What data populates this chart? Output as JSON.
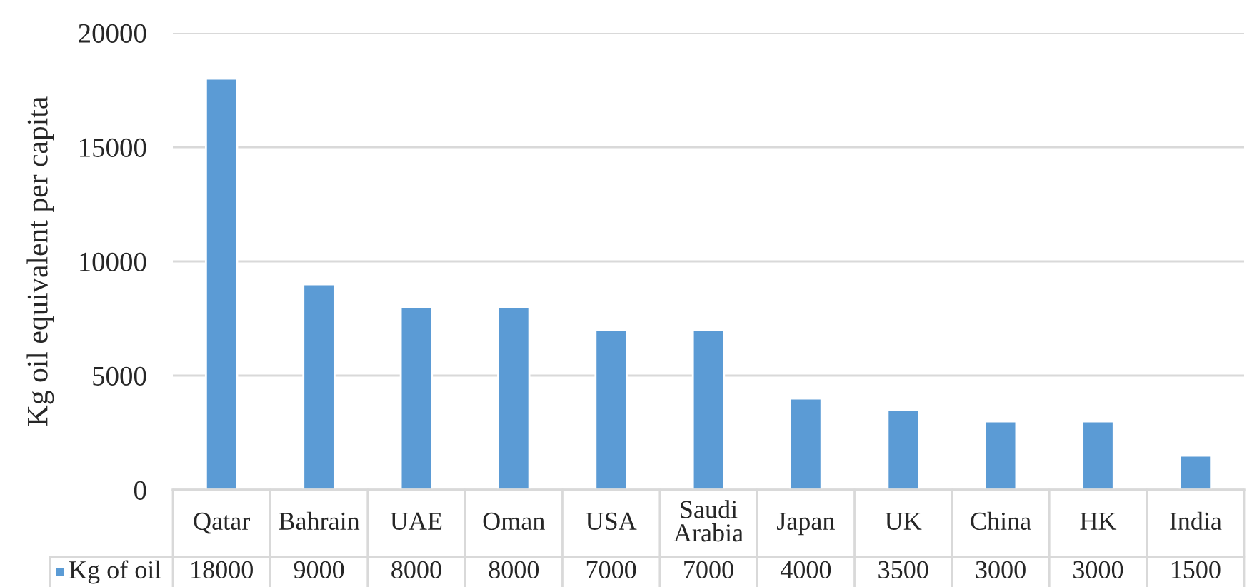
{
  "chart_data": {
    "type": "bar",
    "ylabel": "Kg oil equivalent per capita",
    "categories": [
      "Qatar",
      "Bahrain",
      "UAE",
      "Oman",
      "USA",
      "Saudi Arabia",
      "Japan",
      "UK",
      "China",
      "HK",
      "India"
    ],
    "series": [
      {
        "name": "Kg of oil",
        "color": "#5b9bd5",
        "values": [
          18000,
          9000,
          8000,
          8000,
          7000,
          7000,
          4000,
          3500,
          3000,
          3000,
          1500
        ]
      }
    ],
    "ylim": [
      0,
      20000
    ],
    "yticks": [
      0,
      5000,
      10000,
      15000,
      20000
    ],
    "grid": "y",
    "legend": "bottom left",
    "data_labels": true
  }
}
